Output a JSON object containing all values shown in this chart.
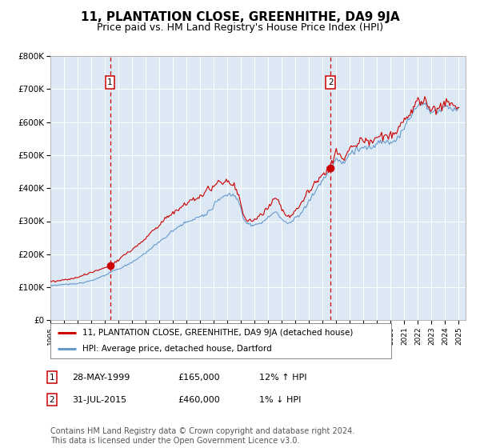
{
  "title": "11, PLANTATION CLOSE, GREENHITHE, DA9 9JA",
  "subtitle": "Price paid vs. HM Land Registry's House Price Index (HPI)",
  "title_fontsize": 11,
  "subtitle_fontsize": 9,
  "background_color": "#ffffff",
  "plot_bg_color": "#dce9f5",
  "grid_color": "#ffffff",
  "ylim": [
    0,
    800000
  ],
  "yticks": [
    0,
    100000,
    200000,
    300000,
    400000,
    500000,
    600000,
    700000,
    800000
  ],
  "ytick_labels": [
    "£0",
    "£100K",
    "£200K",
    "£300K",
    "£400K",
    "£500K",
    "£600K",
    "£700K",
    "£800K"
  ],
  "red_line_color": "#cc0000",
  "blue_line_color": "#6699cc",
  "dashed_vline_color": "#cc0000",
  "purchase1_year": 1999.38,
  "purchase1_value": 165000,
  "purchase2_year": 2015.58,
  "purchase2_value": 460000,
  "legend_red_label": "11, PLANTATION CLOSE, GREENHITHE, DA9 9JA (detached house)",
  "legend_blue_label": "HPI: Average price, detached house, Dartford",
  "table_row1": [
    "1",
    "28-MAY-1999",
    "£165,000",
    "12% ↑ HPI"
  ],
  "table_row2": [
    "2",
    "31-JUL-2015",
    "£460,000",
    "1% ↓ HPI"
  ],
  "footer": "Contains HM Land Registry data © Crown copyright and database right 2024.\nThis data is licensed under the Open Government Licence v3.0.",
  "footer_fontsize": 7.0
}
